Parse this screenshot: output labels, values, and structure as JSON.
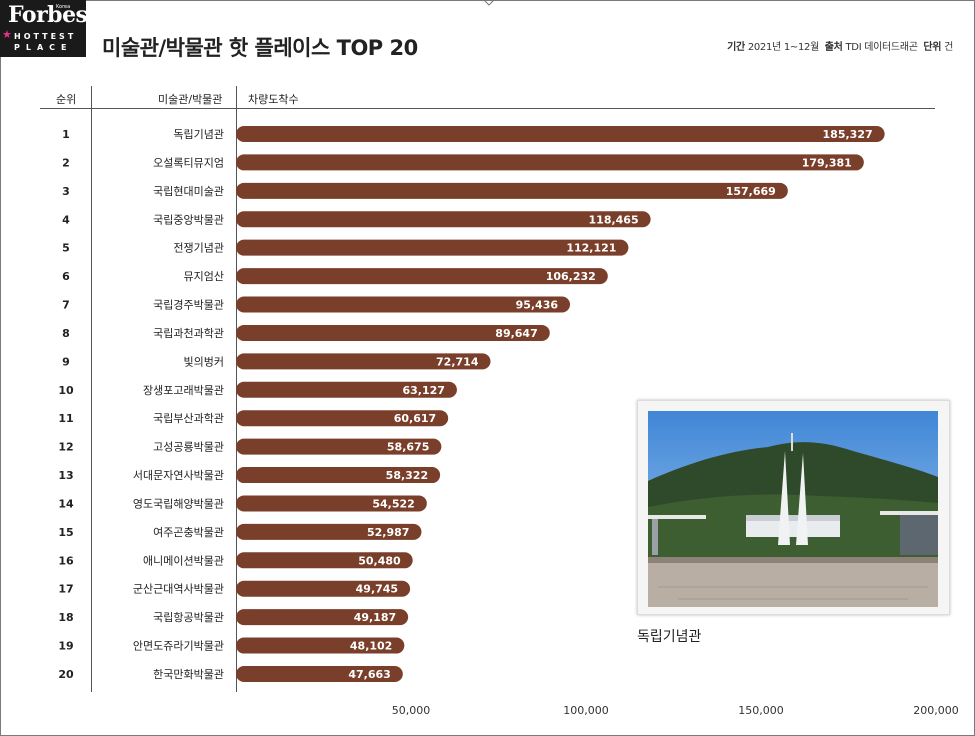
{
  "header": {
    "logo_brand": "Forbes",
    "logo_korea": "Korea",
    "logo_hottest": "HOTTEST",
    "logo_place": "PLACE",
    "title": "미술관/박물관 핫 플레이스 TOP 20",
    "period_label": "기간",
    "period_value": "2021년 1~12월",
    "source_label": "출처",
    "source_value": "TDI 데이터드래곤",
    "unit_label": "단위",
    "unit_value": "건"
  },
  "columns": {
    "rank": "순위",
    "name": "미술관/박물관",
    "metric": "차량도착수"
  },
  "photo": {
    "caption": "독립기념관"
  },
  "chart_data": {
    "type": "bar",
    "orientation": "horizontal",
    "bar_color": "#7a3f2a",
    "ranks": [
      "1",
      "2",
      "3",
      "4",
      "5",
      "6",
      "7",
      "8",
      "9",
      "10",
      "11",
      "12",
      "13",
      "14",
      "15",
      "16",
      "17",
      "18",
      "19",
      "20"
    ],
    "categories": [
      "독립기념관",
      "오설록티뮤지엄",
      "국립현대미술관",
      "국립중앙박물관",
      "전쟁기념관",
      "뮤지엄산",
      "국립경주박물관",
      "국립과천과학관",
      "빛의벙커",
      "장생포고래박물관",
      "국립부산과학관",
      "고성공룡박물관",
      "서대문자연사박물관",
      "영도국립해양박물관",
      "여주곤충박물관",
      "애니메이션박물관",
      "군산근대역사박물관",
      "국립항공박물관",
      "안면도쥬라기박물관",
      "한국만화박물관"
    ],
    "values": [
      185327,
      179381,
      157669,
      118465,
      112121,
      106232,
      95436,
      89647,
      72714,
      63127,
      60617,
      58675,
      58322,
      54522,
      52987,
      50480,
      49745,
      49187,
      48102,
      47663
    ],
    "value_labels": [
      "185,327",
      "179,381",
      "157,669",
      "118,465",
      "112,121",
      "106,232",
      "95,436",
      "89,647",
      "72,714",
      "63,127",
      "60,617",
      "58,675",
      "58,322",
      "54,522",
      "52,987",
      "50,480",
      "49,745",
      "49,187",
      "48,102",
      "47,663"
    ],
    "xlim": [
      0,
      200000
    ],
    "xticks": [
      50000,
      100000,
      150000,
      200000
    ],
    "xtick_labels": [
      "50,000",
      "100,000",
      "150,000",
      "200,000"
    ],
    "grid": false
  }
}
